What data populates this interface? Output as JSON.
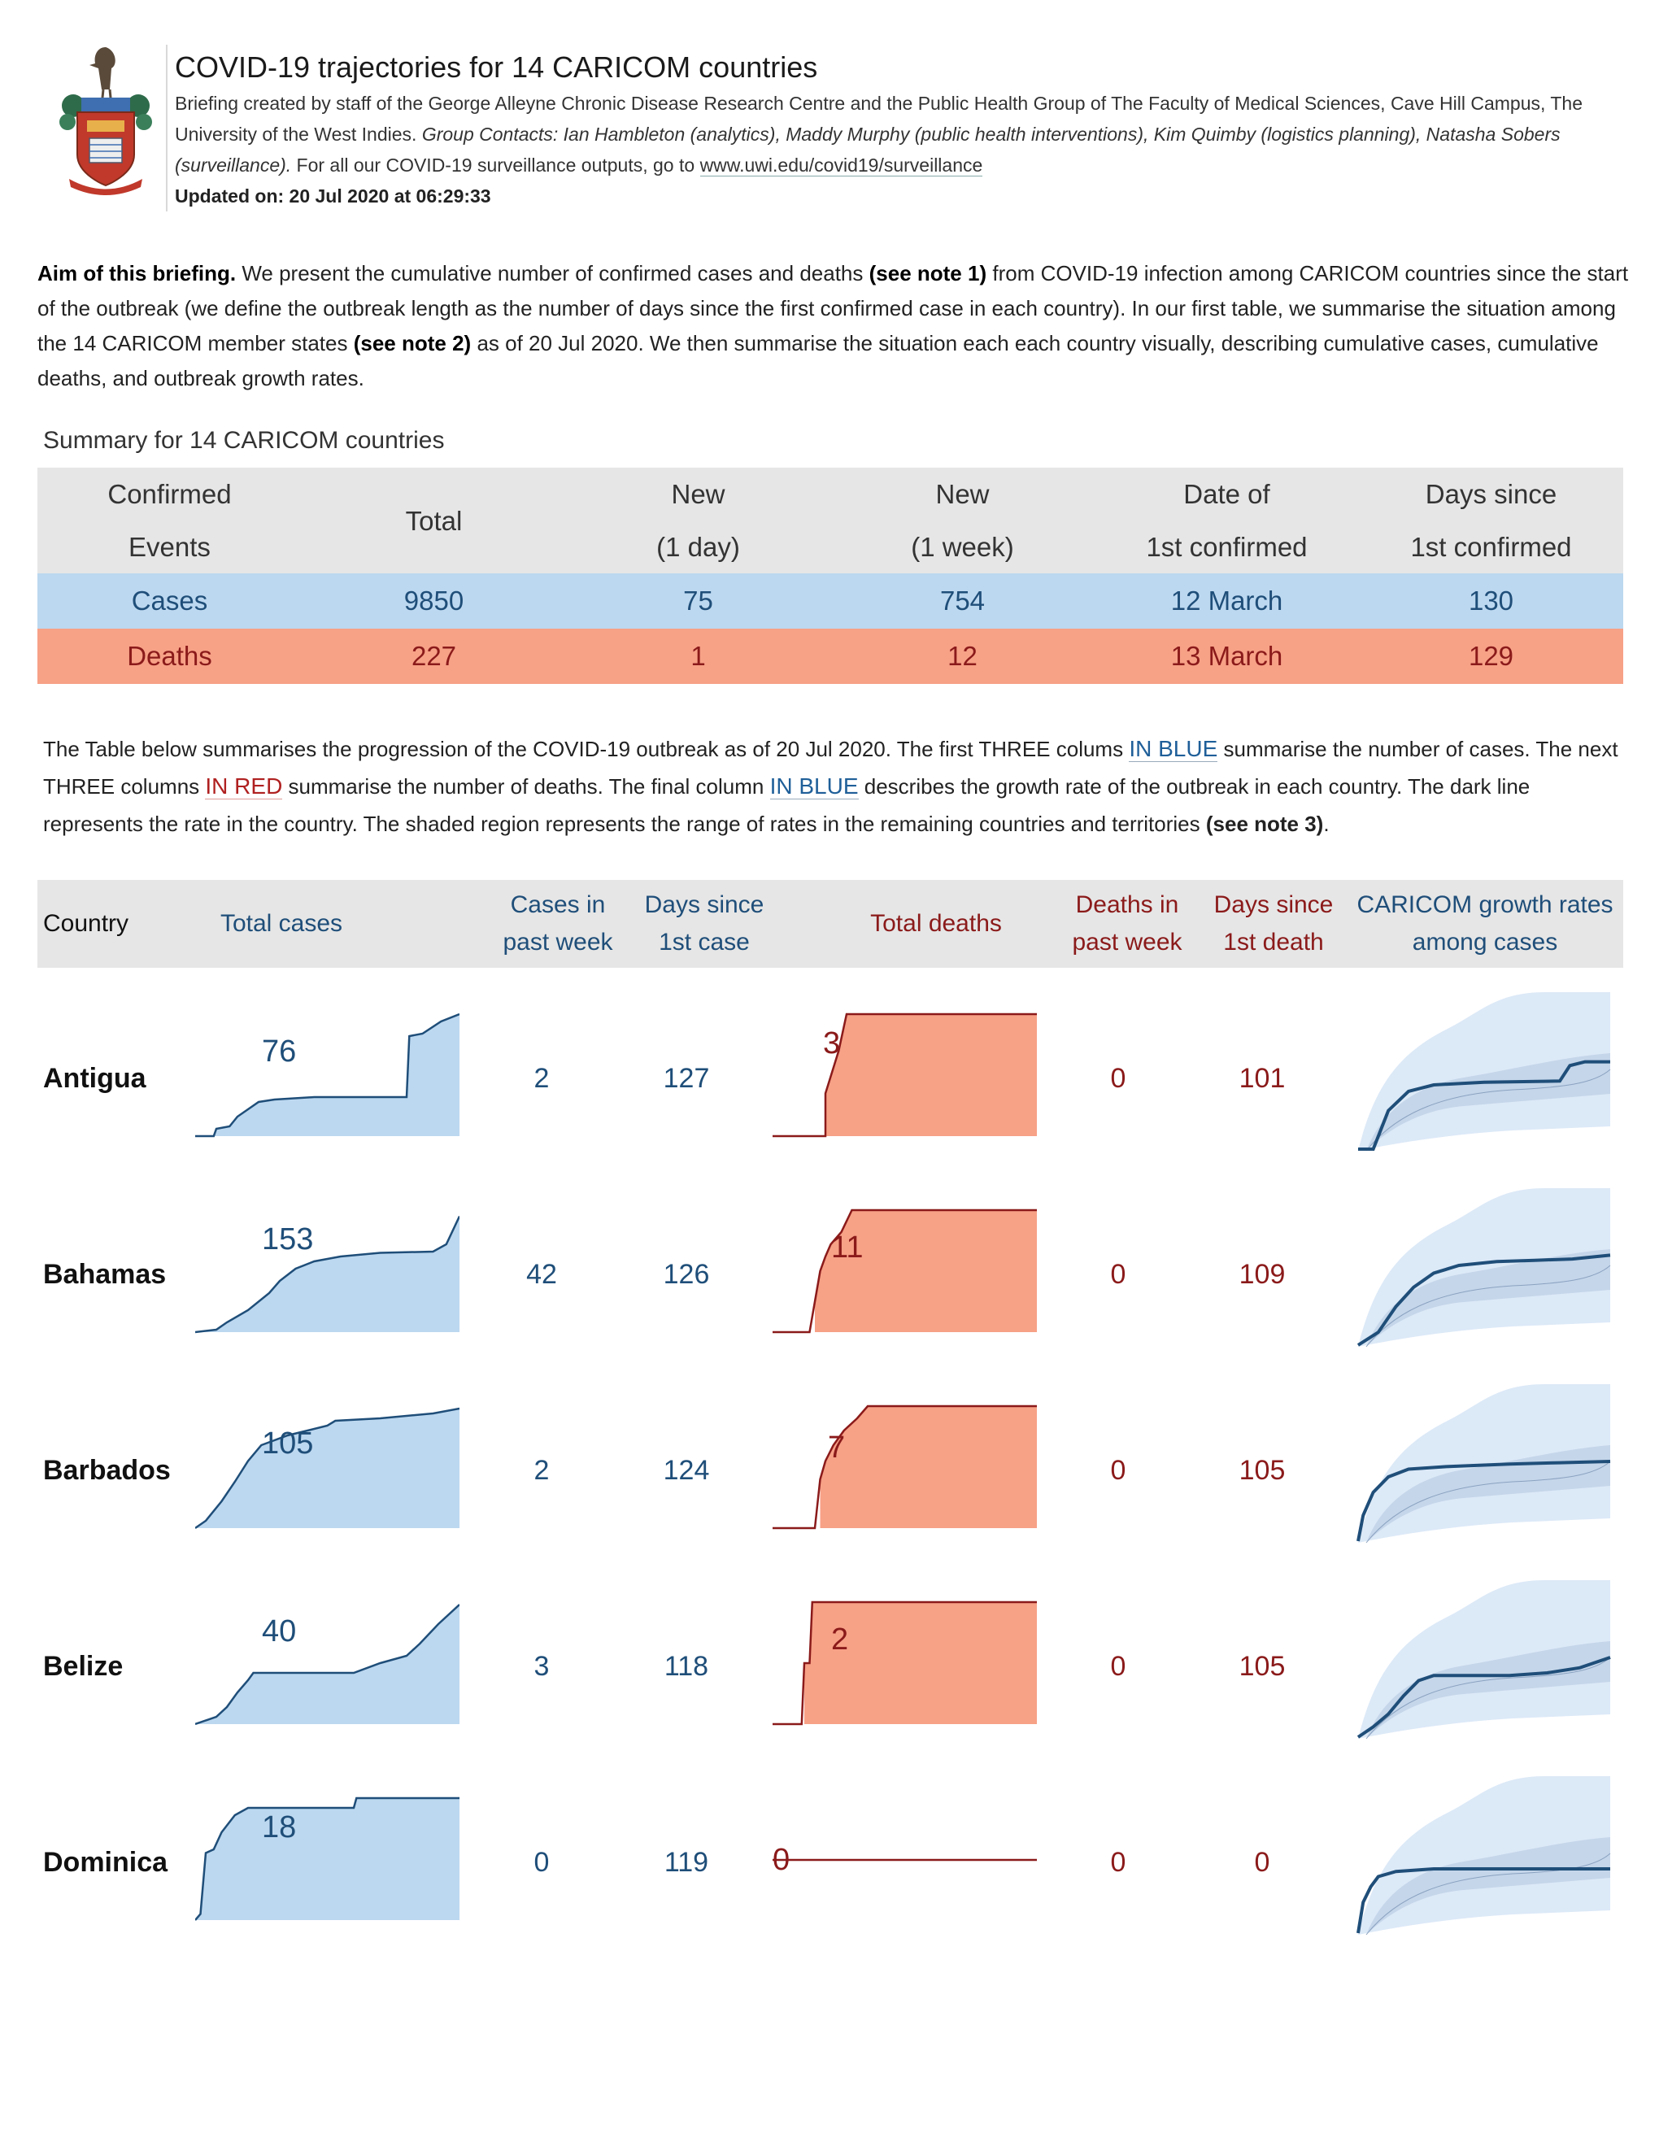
{
  "header": {
    "title": "COVID-19 trajectories for 14 CARICOM countries",
    "byline_1": "Briefing created by staff of the George Alleyne Chronic Disease Research Centre and the Public Health Group of The Faculty of Medical Sciences, Cave Hill Campus, The University of the West Indies.",
    "contacts": "Group Contacts: Ian Hambleton (analytics), Maddy Murphy (public health interventions), Kim Quimby (logistics planning), Natasha Sobers (surveillance).",
    "outputs_text": "For all our COVID-19 surveillance outputs, go to",
    "outputs_link": "www.uwi.edu/covid19/surveillance",
    "updated": "Updated on: 20 Jul 2020 at 06:29:33"
  },
  "aim": {
    "lead": "Aim of this briefing.",
    "text_1": "We present the cumulative number of confirmed cases and deaths",
    "note_1": "(see note 1)",
    "text_2": "from COVID-19 infection among CARICOM countries since the start of the outbreak (we define the outbreak length as the number of days since the first confirmed case in each country). In our first table, we summarise the situation among the 14 CARICOM member states",
    "note_2": "(see note 2)",
    "text_3": "as of 20 Jul 2020. We then summarise the situation each each country visually, describing cumulative cases, cumulative deaths,  and outbreak growth rates."
  },
  "summary": {
    "title": "Summary for 14 CARICOM countries",
    "headers": [
      [
        "Confirmed",
        "Events"
      ],
      [
        "Total",
        ""
      ],
      [
        "New",
        "(1 day)"
      ],
      [
        "New",
        "(1 week)"
      ],
      [
        "Date of",
        "1st confirmed"
      ],
      [
        "Days since",
        "1st confirmed"
      ]
    ],
    "cases": [
      "Cases",
      "9850",
      "75",
      "754",
      "12 March",
      "130"
    ],
    "deaths": [
      "Deaths",
      "227",
      "1",
      "12",
      "13 March",
      "129"
    ]
  },
  "intro": {
    "t1": "The Table below summarises the progression of the COVID-19 outbreak as of 20 Jul 2020. The first THREE colums",
    "blue_1": "IN BLUE",
    "t2": "summarise the number of cases. The next THREE columns",
    "red_1": "IN RED",
    "t3": "summarise the number of deaths. The final column",
    "blue_2": "IN BLUE",
    "t4": "describes the growth rate of the outbreak in each country. The dark line represents the rate in the country. The shaded region represents the range of rates in the remaining countries and territories",
    "note_3": "(see note 3)",
    "t5": "."
  },
  "table_head": {
    "country": "Country",
    "total_cases": "Total cases",
    "cases_week_1": "Cases in",
    "cases_week_2": "past week",
    "days_case_1": "Days since",
    "days_case_2": "1st case",
    "total_deaths": "Total deaths",
    "deaths_week_1": "Deaths in",
    "deaths_week_2": "past week",
    "days_death_1": "Days since",
    "days_death_2": "1st death",
    "growth_1": "CARICOM growth rates",
    "growth_2": "among cases"
  },
  "colors": {
    "cases_fill": "#bcd8f0",
    "cases_line": "#1f4e79",
    "deaths_fill": "#f7a187",
    "deaths_line": "#8b1a1a",
    "header_bg": "#e6e6e6"
  },
  "countries": [
    {
      "name": "Antigua",
      "total_cases": "76",
      "cases_week": "2",
      "days_case": "127",
      "total_deaths": "3",
      "deaths_week": "0",
      "days_death": "101"
    },
    {
      "name": "Bahamas",
      "total_cases": "153",
      "cases_week": "42",
      "days_case": "126",
      "total_deaths": "11",
      "deaths_week": "0",
      "days_death": "109"
    },
    {
      "name": "Barbados",
      "total_cases": "105",
      "cases_week": "2",
      "days_case": "124",
      "total_deaths": "7",
      "deaths_week": "0",
      "days_death": "105"
    },
    {
      "name": "Belize",
      "total_cases": "40",
      "cases_week": "3",
      "days_case": "118",
      "total_deaths": "2",
      "deaths_week": "0",
      "days_death": "105"
    },
    {
      "name": "Dominica",
      "total_cases": "18",
      "cases_week": "0",
      "days_case": "119",
      "total_deaths": "0",
      "deaths_week": "0",
      "days_death": "0"
    }
  ]
}
